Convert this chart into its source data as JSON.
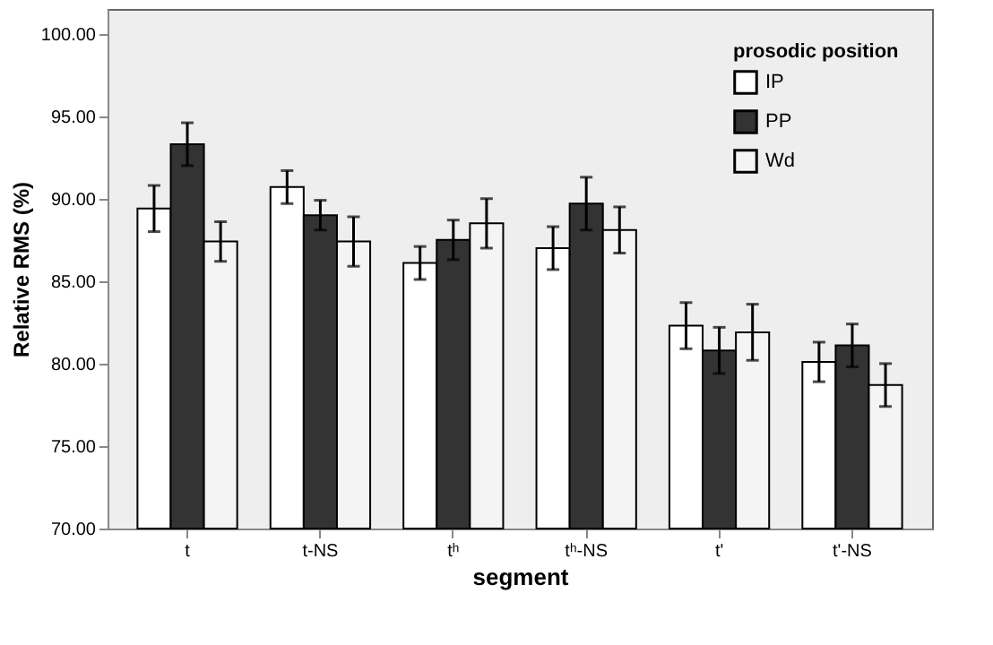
{
  "chart_data": {
    "type": "bar",
    "xlabel": "segment",
    "ylabel": "Relative RMS (%)",
    "legend_title": "prosodic position",
    "categories": [
      "t",
      "t-NS",
      "tʰ",
      "tʰ-NS",
      "t'",
      "t'-NS"
    ],
    "series": [
      {
        "name": "IP",
        "color": "#ffffff",
        "values": [
          89.4,
          90.7,
          86.1,
          87.0,
          82.3,
          80.1
        ],
        "errors": [
          1.4,
          1.0,
          1.0,
          1.3,
          1.4,
          1.2
        ]
      },
      {
        "name": "PP",
        "color": "#333333",
        "values": [
          93.3,
          89.0,
          87.5,
          89.7,
          80.8,
          81.1
        ],
        "errors": [
          1.3,
          0.9,
          1.2,
          1.6,
          1.4,
          1.3
        ]
      },
      {
        "name": "Wd",
        "color": "#f4f4f4",
        "values": [
          87.4,
          87.4,
          88.5,
          88.1,
          81.9,
          78.7
        ],
        "errors": [
          1.2,
          1.5,
          1.5,
          1.4,
          1.7,
          1.3
        ]
      }
    ],
    "ylim": [
      70,
      101.5
    ],
    "yticks": [
      {
        "value": 70,
        "label": "70.00"
      },
      {
        "value": 75,
        "label": "75.00"
      },
      {
        "value": 80,
        "label": "80.00"
      },
      {
        "value": 85,
        "label": "85.00"
      },
      {
        "value": 90,
        "label": "90.00"
      },
      {
        "value": 95,
        "label": "95.00"
      },
      {
        "value": 100,
        "label": "100.00"
      }
    ],
    "grid": false,
    "legend": "top right"
  }
}
